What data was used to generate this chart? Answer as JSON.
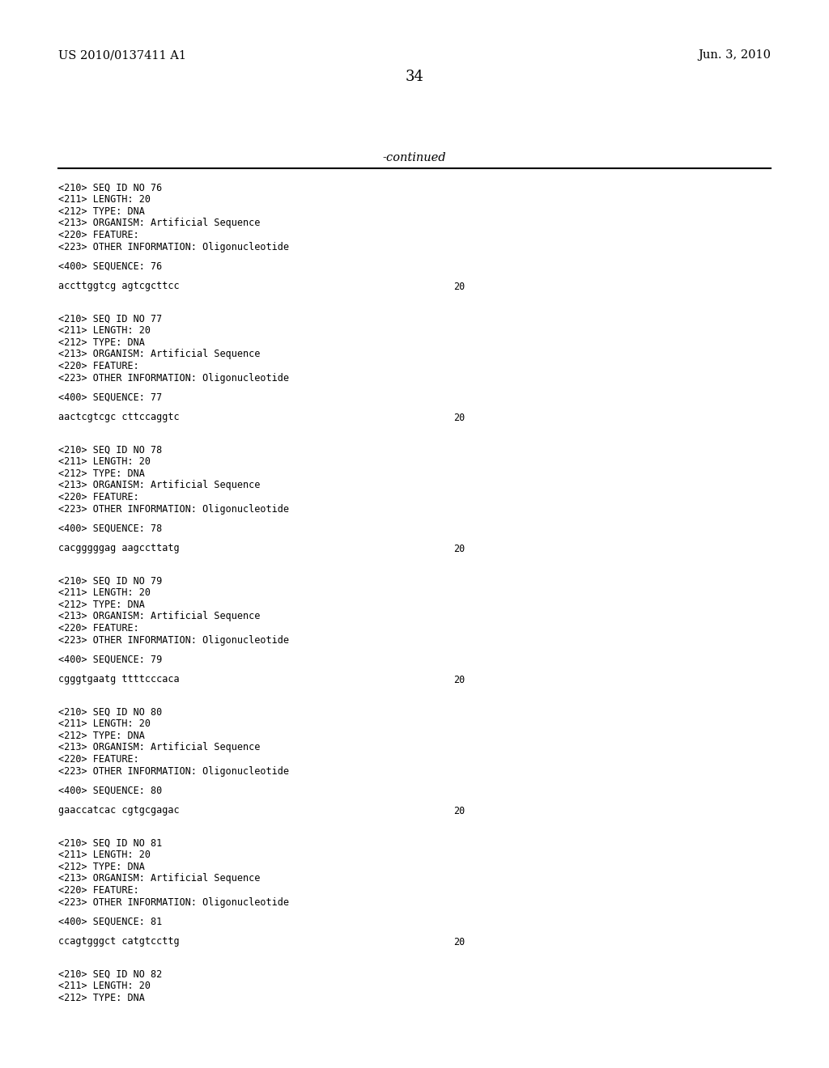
{
  "background_color": "#ffffff",
  "header_left": "US 2010/0137411 A1",
  "header_right": "Jun. 3, 2010",
  "page_number": "34",
  "continued_text": "-continued",
  "content": [
    {
      "type": "meta",
      "lines": [
        "<210> SEQ ID NO 76",
        "<211> LENGTH: 20",
        "<212> TYPE: DNA",
        "<213> ORGANISM: Artificial Sequence",
        "<220> FEATURE:",
        "<223> OTHER INFORMATION: Oligonucleotide"
      ]
    },
    {
      "type": "seq_label",
      "text": "<400> SEQUENCE: 76"
    },
    {
      "type": "sequence",
      "seq": "accttggtcg agtcgcttcc",
      "length": "20"
    },
    {
      "type": "meta",
      "lines": [
        "<210> SEQ ID NO 77",
        "<211> LENGTH: 20",
        "<212> TYPE: DNA",
        "<213> ORGANISM: Artificial Sequence",
        "<220> FEATURE:",
        "<223> OTHER INFORMATION: Oligonucleotide"
      ]
    },
    {
      "type": "seq_label",
      "text": "<400> SEQUENCE: 77"
    },
    {
      "type": "sequence",
      "seq": "aactcgtcgc cttccaggtc",
      "length": "20"
    },
    {
      "type": "meta",
      "lines": [
        "<210> SEQ ID NO 78",
        "<211> LENGTH: 20",
        "<212> TYPE: DNA",
        "<213> ORGANISM: Artificial Sequence",
        "<220> FEATURE:",
        "<223> OTHER INFORMATION: Oligonucleotide"
      ]
    },
    {
      "type": "seq_label",
      "text": "<400> SEQUENCE: 78"
    },
    {
      "type": "sequence",
      "seq": "cacgggggag aagccttatg",
      "length": "20"
    },
    {
      "type": "meta",
      "lines": [
        "<210> SEQ ID NO 79",
        "<211> LENGTH: 20",
        "<212> TYPE: DNA",
        "<213> ORGANISM: Artificial Sequence",
        "<220> FEATURE:",
        "<223> OTHER INFORMATION: Oligonucleotide"
      ]
    },
    {
      "type": "seq_label",
      "text": "<400> SEQUENCE: 79"
    },
    {
      "type": "sequence",
      "seq": "cgggtgaatg ttttcccaca",
      "length": "20"
    },
    {
      "type": "meta",
      "lines": [
        "<210> SEQ ID NO 80",
        "<211> LENGTH: 20",
        "<212> TYPE: DNA",
        "<213> ORGANISM: Artificial Sequence",
        "<220> FEATURE:",
        "<223> OTHER INFORMATION: Oligonucleotide"
      ]
    },
    {
      "type": "seq_label",
      "text": "<400> SEQUENCE: 80"
    },
    {
      "type": "sequence",
      "seq": "gaaccatcac cgtgcgagac",
      "length": "20"
    },
    {
      "type": "meta",
      "lines": [
        "<210> SEQ ID NO 81",
        "<211> LENGTH: 20",
        "<212> TYPE: DNA",
        "<213> ORGANISM: Artificial Sequence",
        "<220> FEATURE:",
        "<223> OTHER INFORMATION: Oligonucleotide"
      ]
    },
    {
      "type": "seq_label",
      "text": "<400> SEQUENCE: 81"
    },
    {
      "type": "sequence",
      "seq": "ccagtgggct catgtccttg",
      "length": "20"
    },
    {
      "type": "meta_partial",
      "lines": [
        "<210> SEQ ID NO 82",
        "<211> LENGTH: 20",
        "<212> TYPE: DNA"
      ]
    }
  ]
}
